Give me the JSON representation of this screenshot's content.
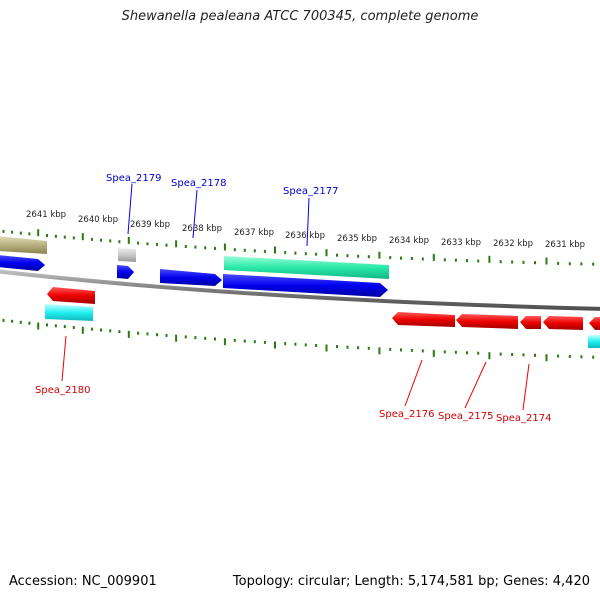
{
  "title": "Shewanella pealeana ATCC 700345, complete genome",
  "footer": {
    "accession": "Accession: NC_009901",
    "summary": "Topology: circular; Length: 5,174,581 bp; Genes: 4,420"
  },
  "ruler_labels": [
    "2641 kbp",
    "2640 kbp",
    "2639 kbp",
    "2638 kbp",
    "2637 kbp",
    "2636 kbp",
    "2635 kbp",
    "2634 kbp",
    "2633 kbp",
    "2632 kbp",
    "2631 kbp"
  ],
  "gene_labels": {
    "top": [
      "Spea_2179",
      "Spea_2178",
      "Spea_2177"
    ],
    "bottom": [
      "Spea_2180",
      "Spea_2176",
      "Spea_2175",
      "Spea_2174"
    ]
  },
  "colors": {
    "forward_cds": "#0000ee",
    "reverse_cds": "#ee0000",
    "rna_feature": "#22e8a8",
    "cyan_feature": "#22f0f0",
    "olive_feature": "#b8b080",
    "gray_feature": "#c8c8c8",
    "tick": "#2a7a10",
    "backbone": "#808080"
  }
}
